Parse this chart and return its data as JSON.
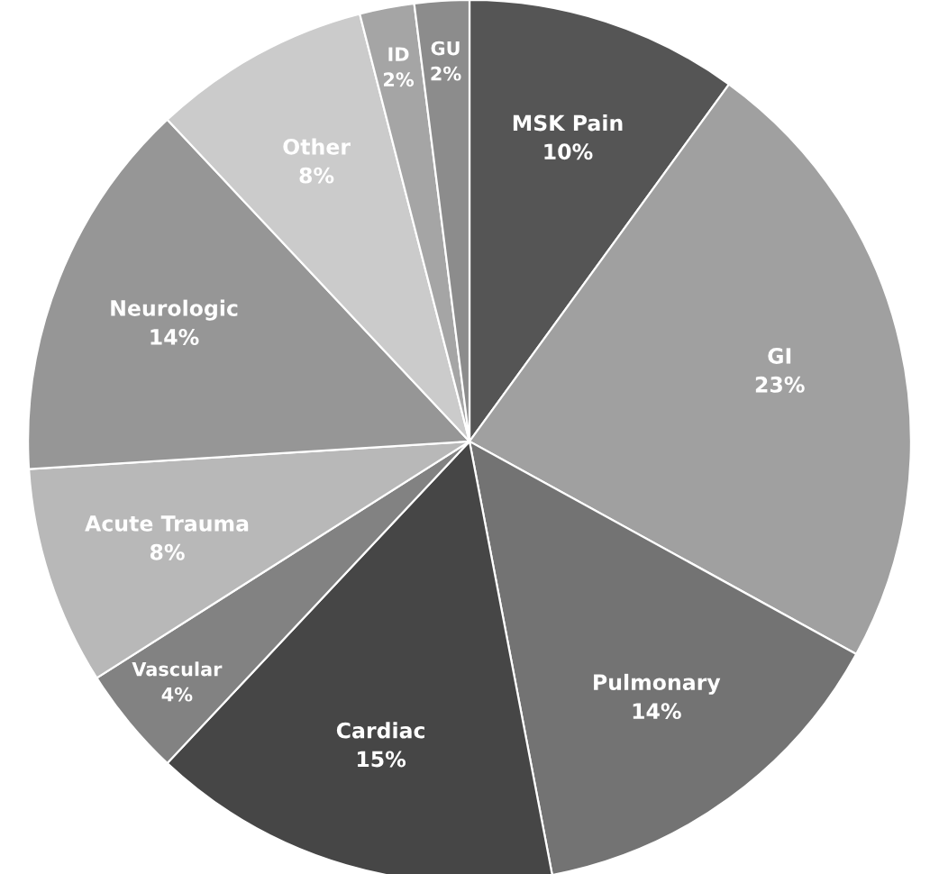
{
  "chart_data": {
    "type": "pie",
    "categories": [
      "MSK Pain",
      "GI",
      "Pulmonary",
      "Cardiac",
      "Vascular",
      "Acute Trauma",
      "Neurologic",
      "Other",
      "ID",
      "GU"
    ],
    "values": [
      10,
      23,
      14,
      15,
      4,
      8,
      14,
      8,
      2,
      2
    ],
    "value_labels": [
      "10%",
      "23%",
      "14%",
      "15%",
      "4%",
      "8%",
      "14%",
      "8%",
      "2%",
      "2%"
    ],
    "colors": [
      "#555555",
      "#a0a0a0",
      "#737373",
      "#464646",
      "#828282",
      "#b8b8b8",
      "#969696",
      "#cbcbcb",
      "#a5a5a5",
      "#8c8c8c"
    ],
    "legend": false
  }
}
